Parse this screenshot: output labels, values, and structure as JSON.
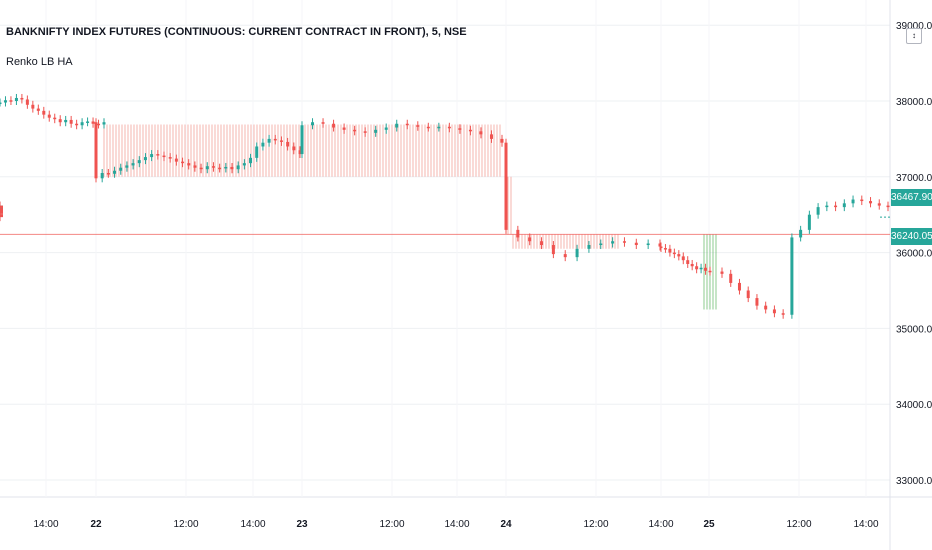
{
  "header": {
    "title": "BANKNIFTY INDEX FUTURES (CONTINUOUS: CURRENT CONTRACT IN FRONT), 5, NSE",
    "indicator": "Renko LB HA",
    "scale_mode_label": "↕"
  },
  "colors": {
    "up": "#26a69a",
    "down": "#ef5350",
    "renko_line": "#f28b82",
    "renko_up_line": "#4caf50",
    "gridline": "#eef0f3",
    "axis_text": "#131722"
  },
  "chart_data": {
    "type": "line",
    "title": "BANKNIFTY INDEX FUTURES (CONTINUOUS: CURRENT CONTRACT IN FRONT), 5, NSE",
    "xlabel": "",
    "ylabel": "",
    "ylim": [
      32800,
      39200
    ],
    "grid": true,
    "y_ticks": [
      "39000.00",
      "38000.00",
      "37000.00",
      "36000.00",
      "35000.00",
      "34000.00",
      "33000.00"
    ],
    "x_ticks": [
      {
        "label": "14:00",
        "bold": false
      },
      {
        "label": "22",
        "bold": true
      },
      {
        "label": "12:00",
        "bold": false
      },
      {
        "label": "14:00",
        "bold": false
      },
      {
        "label": "23",
        "bold": true
      },
      {
        "label": "12:00",
        "bold": false
      },
      {
        "label": "14:00",
        "bold": false
      },
      {
        "label": "24",
        "bold": true
      },
      {
        "label": "12:00",
        "bold": false
      },
      {
        "label": "14:00",
        "bold": false
      },
      {
        "label": "25",
        "bold": true
      },
      {
        "label": "12:00",
        "bold": false
      },
      {
        "label": "14:00",
        "bold": false
      }
    ],
    "current_price": {
      "label": "36467.90",
      "value": 36467.9
    },
    "renko_level": {
      "label": "36240.05",
      "value": 36240.05
    },
    "series": [
      {
        "values": [
          37980,
          38010,
          38000,
          38040,
          38020,
          37950,
          37900,
          37870,
          37820,
          37780,
          37760,
          37720,
          37750,
          37700,
          37680,
          37720,
          37730,
          37700,
          37690,
          37720,
          36980,
          37050,
          37040,
          37080,
          37120,
          37150,
          37180,
          37220,
          37260,
          37300,
          37280,
          37260,
          37240,
          37200,
          37180,
          37150,
          37120,
          37100,
          37140,
          37120,
          37110,
          37130,
          37100,
          37150,
          37180,
          37250,
          37400,
          37450,
          37500,
          37480,
          37460,
          37400,
          37350,
          37300,
          37680,
          37720,
          37700,
          37650,
          37620,
          37600,
          37580,
          37620,
          37650,
          37700,
          37680,
          37660,
          37650,
          37660,
          37640,
          37620,
          37600,
          37560,
          37500,
          37450,
          36300,
          36200,
          36150,
          36100,
          35980,
          35940,
          36050,
          36100,
          36120,
          36150,
          36130,
          36100,
          36120,
          36080,
          36060,
          36050,
          36000,
          35980,
          35950,
          35900,
          35850,
          35820,
          35780,
          35800,
          35760,
          35750,
          35720,
          35600,
          35500,
          35400,
          35300,
          35250,
          35200,
          35180,
          36200,
          36300,
          36500,
          36600,
          36620,
          36600,
          36650,
          36700,
          36680,
          36650,
          36620,
          36600,
          36620,
          36580,
          36560,
          36550,
          36580,
          36520,
          36500,
          36467.9
        ]
      }
    ]
  }
}
